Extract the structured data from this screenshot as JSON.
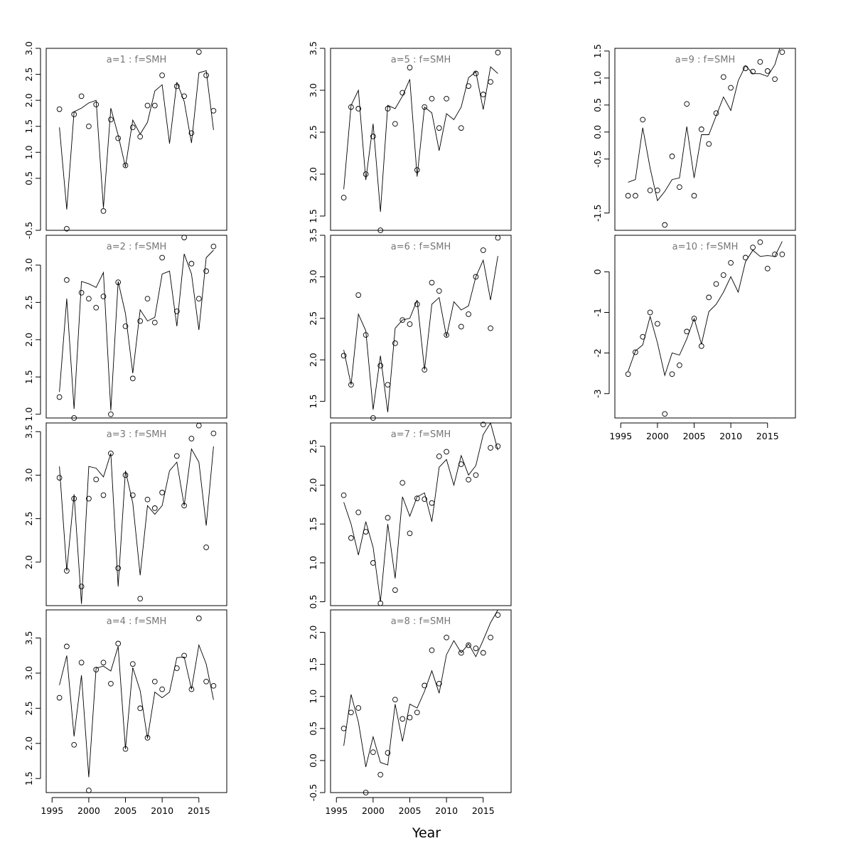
{
  "chart_data": [
    {
      "type": "line",
      "title": "a=1 : f=SMH",
      "ylim": [
        -0.5,
        3.0
      ],
      "yticks": [
        -0.5,
        0.5,
        1.0,
        1.5,
        2.0,
        2.5,
        3.0
      ],
      "ytick_labels": [
        "-0.5",
        "0.5",
        "1.0",
        "1.5",
        "2.0",
        "2.5",
        "3.0"
      ],
      "x": [
        1996,
        1997,
        1998,
        1999,
        2000,
        2001,
        2002,
        2003,
        2004,
        2005,
        2006,
        2007,
        2008,
        2009,
        2010,
        2011,
        2012,
        2013,
        2014,
        2015,
        2016,
        2017
      ],
      "series": [
        {
          "type": "line",
          "values": [
            1.48,
            -0.1,
            1.78,
            1.85,
            1.95,
            2.0,
            -0.07,
            1.85,
            1.33,
            0.72,
            1.62,
            1.35,
            1.58,
            2.18,
            2.3,
            1.17,
            2.35,
            1.98,
            1.18,
            2.53,
            2.57,
            1.43
          ]
        },
        {
          "type": "points",
          "values": [
            1.83,
            -0.47,
            1.73,
            2.08,
            1.5,
            1.92,
            -0.13,
            1.63,
            1.27,
            0.75,
            1.48,
            1.3,
            1.9,
            1.9,
            2.48,
            null,
            2.27,
            2.08,
            1.37,
            2.93,
            2.48,
            1.8
          ]
        }
      ]
    },
    {
      "type": "line",
      "title": "a=2 : f=SMH",
      "ylim": [
        0.95,
        3.4
      ],
      "yticks": [
        1.0,
        1.5,
        2.0,
        2.5,
        3.0
      ],
      "ytick_labels": [
        "1.0",
        "1.5",
        "2.0",
        "2.5",
        "3.0"
      ],
      "x": [
        1996,
        1997,
        1998,
        1999,
        2000,
        2001,
        2002,
        2003,
        2004,
        2005,
        2006,
        2007,
        2008,
        2009,
        2010,
        2011,
        2012,
        2013,
        2014,
        2015,
        2016,
        2017
      ],
      "series": [
        {
          "type": "line",
          "values": [
            1.3,
            2.55,
            1.07,
            2.78,
            2.75,
            2.7,
            2.9,
            1.05,
            2.78,
            2.35,
            1.55,
            2.4,
            2.25,
            2.3,
            2.88,
            2.92,
            2.18,
            3.15,
            2.88,
            2.13,
            3.1,
            3.2
          ]
        },
        {
          "type": "points",
          "values": [
            1.23,
            2.8,
            0.95,
            2.63,
            2.55,
            2.43,
            2.58,
            1.0,
            2.77,
            2.18,
            1.48,
            2.25,
            2.55,
            2.23,
            3.1,
            null,
            2.38,
            3.37,
            3.02,
            2.55,
            2.92,
            3.25
          ]
        }
      ]
    },
    {
      "type": "line",
      "title": "a=3 : f=SMH",
      "ylim": [
        1.5,
        3.6
      ],
      "yticks": [
        2.0,
        2.5,
        3.0,
        3.5
      ],
      "ytick_labels": [
        "2.0",
        "2.5",
        "3.0",
        "3.5"
      ],
      "x": [
        1996,
        1997,
        1998,
        1999,
        2000,
        2001,
        2002,
        2003,
        2004,
        2005,
        2006,
        2007,
        2008,
        2009,
        2010,
        2011,
        2012,
        2013,
        2014,
        2015,
        2016,
        2017
      ],
      "series": [
        {
          "type": "line",
          "values": [
            3.1,
            1.9,
            2.78,
            1.52,
            3.1,
            3.08,
            2.98,
            3.25,
            1.72,
            3.05,
            2.68,
            1.85,
            2.65,
            2.55,
            2.65,
            3.05,
            3.15,
            2.65,
            3.3,
            3.15,
            2.42,
            3.33
          ]
        },
        {
          "type": "points",
          "values": [
            2.97,
            1.9,
            2.73,
            1.72,
            2.73,
            2.95,
            2.77,
            3.25,
            1.93,
            3.0,
            2.77,
            1.58,
            2.72,
            2.62,
            2.8,
            null,
            3.22,
            2.65,
            3.42,
            3.57,
            2.17,
            3.48
          ]
        }
      ]
    },
    {
      "type": "line",
      "title": "a=4 : f=SMH",
      "ylim": [
        1.3,
        3.9
      ],
      "yticks": [
        1.5,
        2.0,
        2.5,
        3.0,
        3.5
      ],
      "ytick_labels": [
        "1.5",
        "2.0",
        "2.5",
        "3.0",
        "3.5"
      ],
      "x": [
        1996,
        1997,
        1998,
        1999,
        2000,
        2001,
        2002,
        2003,
        2004,
        2005,
        2006,
        2007,
        2008,
        2009,
        2010,
        2011,
        2012,
        2013,
        2014,
        2015,
        2016,
        2017
      ],
      "series": [
        {
          "type": "line",
          "values": [
            2.83,
            3.25,
            2.1,
            2.97,
            1.52,
            3.07,
            3.1,
            3.03,
            3.38,
            1.92,
            3.08,
            2.75,
            2.07,
            2.73,
            2.65,
            2.73,
            3.22,
            3.23,
            2.77,
            3.4,
            3.13,
            2.62
          ]
        },
        {
          "type": "points",
          "values": [
            2.65,
            3.38,
            1.98,
            3.15,
            1.33,
            3.05,
            3.15,
            2.85,
            3.42,
            1.92,
            3.13,
            2.5,
            2.08,
            2.88,
            2.77,
            null,
            3.07,
            3.25,
            2.77,
            3.78,
            2.88,
            2.82
          ]
        }
      ]
    },
    {
      "type": "line",
      "title": "a=5 : f=SMH",
      "ylim": [
        1.33,
        3.5
      ],
      "yticks": [
        1.5,
        2.0,
        2.5,
        3.0,
        3.5
      ],
      "ytick_labels": [
        "1.5",
        "2.0",
        "2.5",
        "3.0",
        "3.5"
      ],
      "x": [
        1996,
        1997,
        1998,
        1999,
        2000,
        2001,
        2002,
        2003,
        2004,
        2005,
        2006,
        2007,
        2008,
        2009,
        2010,
        2011,
        2012,
        2013,
        2014,
        2015,
        2016,
        2017
      ],
      "series": [
        {
          "type": "line",
          "values": [
            1.82,
            2.82,
            3.0,
            1.93,
            2.6,
            1.55,
            2.82,
            2.78,
            2.93,
            3.13,
            1.97,
            2.8,
            2.73,
            2.28,
            2.72,
            2.65,
            2.8,
            3.15,
            3.22,
            2.77,
            3.28,
            3.2
          ]
        },
        {
          "type": "points",
          "values": [
            1.72,
            2.8,
            2.78,
            2.0,
            2.45,
            1.33,
            2.78,
            2.6,
            2.97,
            3.27,
            2.05,
            2.8,
            2.9,
            2.55,
            2.9,
            null,
            2.55,
            3.05,
            3.2,
            2.95,
            3.1,
            3.45
          ]
        }
      ]
    },
    {
      "type": "line",
      "title": "a=6 : f=SMH",
      "ylim": [
        1.3,
        3.5
      ],
      "yticks": [
        1.5,
        2.0,
        2.5,
        3.0,
        3.5
      ],
      "ytick_labels": [
        "1.5",
        "2.0",
        "2.5",
        "3.0",
        "3.5"
      ],
      "x": [
        1996,
        1997,
        1998,
        1999,
        2000,
        2001,
        2002,
        2003,
        2004,
        2005,
        2006,
        2007,
        2008,
        2009,
        2010,
        2011,
        2012,
        2013,
        2014,
        2015,
        2016,
        2017
      ],
      "series": [
        {
          "type": "line",
          "values": [
            2.12,
            1.7,
            2.55,
            2.35,
            1.4,
            2.05,
            1.37,
            2.38,
            2.48,
            2.5,
            2.72,
            1.88,
            2.67,
            2.75,
            2.28,
            2.7,
            2.6,
            2.65,
            3.0,
            3.2,
            2.72,
            3.25
          ]
        },
        {
          "type": "points",
          "values": [
            2.05,
            1.7,
            2.78,
            2.3,
            1.3,
            1.93,
            1.7,
            2.2,
            2.48,
            2.43,
            2.67,
            1.88,
            2.93,
            2.83,
            2.3,
            null,
            2.4,
            2.55,
            3.0,
            3.32,
            2.38,
            3.47
          ]
        }
      ]
    },
    {
      "type": "line",
      "title": "a=7 : f=SMH",
      "ylim": [
        0.45,
        2.8
      ],
      "yticks": [
        0.5,
        1.0,
        1.5,
        2.0,
        2.5
      ],
      "ytick_labels": [
        "0.5",
        "1.0",
        "1.5",
        "2.0",
        "2.5"
      ],
      "x": [
        1996,
        1997,
        1998,
        1999,
        2000,
        2001,
        2002,
        2003,
        2004,
        2005,
        2006,
        2007,
        2008,
        2009,
        2010,
        2011,
        2012,
        2013,
        2014,
        2015,
        2016,
        2017
      ],
      "series": [
        {
          "type": "line",
          "values": [
            1.78,
            1.5,
            1.1,
            1.53,
            1.2,
            0.5,
            1.5,
            0.8,
            1.85,
            1.6,
            1.85,
            1.9,
            1.53,
            2.23,
            2.33,
            2.0,
            2.38,
            2.13,
            2.25,
            2.65,
            2.8,
            2.45
          ]
        },
        {
          "type": "points",
          "values": [
            1.87,
            1.32,
            1.65,
            1.4,
            1.0,
            0.48,
            1.58,
            0.65,
            2.03,
            1.38,
            1.83,
            1.82,
            1.77,
            2.37,
            2.43,
            null,
            2.27,
            2.07,
            2.13,
            2.78,
            2.48,
            2.5
          ]
        }
      ]
    },
    {
      "type": "line",
      "title": "a=8 : f=SMH",
      "ylim": [
        -0.5,
        2.35
      ],
      "yticks": [
        -0.5,
        0.0,
        0.5,
        1.0,
        1.5,
        2.0
      ],
      "ytick_labels": [
        "-0.5",
        "0.0",
        "0.5",
        "1.0",
        "1.5",
        "2.0"
      ],
      "x": [
        1996,
        1997,
        1998,
        1999,
        2000,
        2001,
        2002,
        2003,
        2004,
        2005,
        2006,
        2007,
        2008,
        2009,
        2010,
        2011,
        2012,
        2013,
        2014,
        2015,
        2016,
        2017
      ],
      "series": [
        {
          "type": "line",
          "values": [
            0.23,
            1.03,
            0.6,
            -0.1,
            0.37,
            -0.03,
            -0.07,
            0.88,
            0.3,
            0.88,
            0.82,
            1.08,
            1.4,
            1.05,
            1.65,
            1.87,
            1.68,
            1.82,
            1.62,
            1.88,
            2.15,
            2.35
          ]
        },
        {
          "type": "points",
          "values": [
            0.5,
            0.75,
            0.82,
            -0.5,
            0.13,
            -0.22,
            0.12,
            0.95,
            0.65,
            0.67,
            0.75,
            1.17,
            1.72,
            1.2,
            1.92,
            null,
            1.68,
            1.8,
            1.75,
            1.68,
            1.92,
            2.27
          ]
        }
      ]
    },
    {
      "type": "line",
      "title": "a=9 : f=SMH",
      "ylim": [
        -1.82,
        1.55
      ],
      "yticks": [
        -1.5,
        -0.5,
        0.0,
        0.5,
        1.0,
        1.5
      ],
      "ytick_labels": [
        "-1.5",
        "-0.5",
        "0.0",
        "0.5",
        "1.0",
        "1.5"
      ],
      "x": [
        1996,
        1997,
        1998,
        1999,
        2000,
        2001,
        2002,
        2003,
        2004,
        2005,
        2006,
        2007,
        2008,
        2009,
        2010,
        2011,
        2012,
        2013,
        2014,
        2015,
        2016,
        2017
      ],
      "series": [
        {
          "type": "line",
          "values": [
            -0.93,
            -0.88,
            0.08,
            -0.67,
            -1.27,
            -1.1,
            -0.88,
            -0.85,
            0.1,
            -0.85,
            -0.05,
            -0.05,
            0.3,
            0.65,
            0.4,
            0.95,
            1.23,
            1.08,
            1.08,
            1.03,
            1.25,
            1.7
          ]
        },
        {
          "type": "points",
          "values": [
            -1.18,
            -1.18,
            0.23,
            -1.08,
            -1.08,
            -1.72,
            -0.45,
            -1.02,
            0.52,
            -1.18,
            0.05,
            -0.22,
            0.35,
            1.02,
            0.82,
            null,
            1.18,
            1.12,
            1.3,
            1.13,
            0.98,
            1.48
          ]
        }
      ]
    },
    {
      "type": "line",
      "title": "a=10 : f=SMH",
      "ylim": [
        -3.6,
        0.9
      ],
      "yticks": [
        -3,
        -2,
        -1,
        0
      ],
      "ytick_labels": [
        "-3",
        "-2",
        "-1",
        "0"
      ],
      "x": [
        1996,
        1997,
        1998,
        1999,
        2000,
        2001,
        2002,
        2003,
        2004,
        2005,
        2006,
        2007,
        2008,
        2009,
        2010,
        2011,
        2012,
        2013,
        2014,
        2015,
        2016,
        2017
      ],
      "series": [
        {
          "type": "line",
          "values": [
            -2.45,
            -1.95,
            -1.8,
            -1.1,
            -1.75,
            -2.55,
            -2.0,
            -2.05,
            -1.65,
            -1.15,
            -1.78,
            -0.98,
            -0.8,
            -0.5,
            -0.12,
            -0.5,
            0.25,
            0.53,
            0.38,
            0.4,
            0.38,
            0.75
          ]
        },
        {
          "type": "points",
          "values": [
            -2.52,
            -1.98,
            -1.6,
            -1.0,
            -1.28,
            -3.5,
            -2.52,
            -2.3,
            -1.47,
            -1.15,
            -1.83,
            -0.63,
            -0.3,
            -0.08,
            0.22,
            null,
            0.35,
            0.6,
            0.73,
            0.08,
            0.43,
            0.43
          ]
        }
      ]
    }
  ],
  "x_axis": {
    "xlim": [
      1994.2,
      2018.8
    ],
    "ticks": [
      1995,
      2000,
      2005,
      2010,
      2015
    ],
    "tick_labels": [
      "1995",
      "2000",
      "2005",
      "2010",
      "2015"
    ],
    "label": "Year"
  }
}
